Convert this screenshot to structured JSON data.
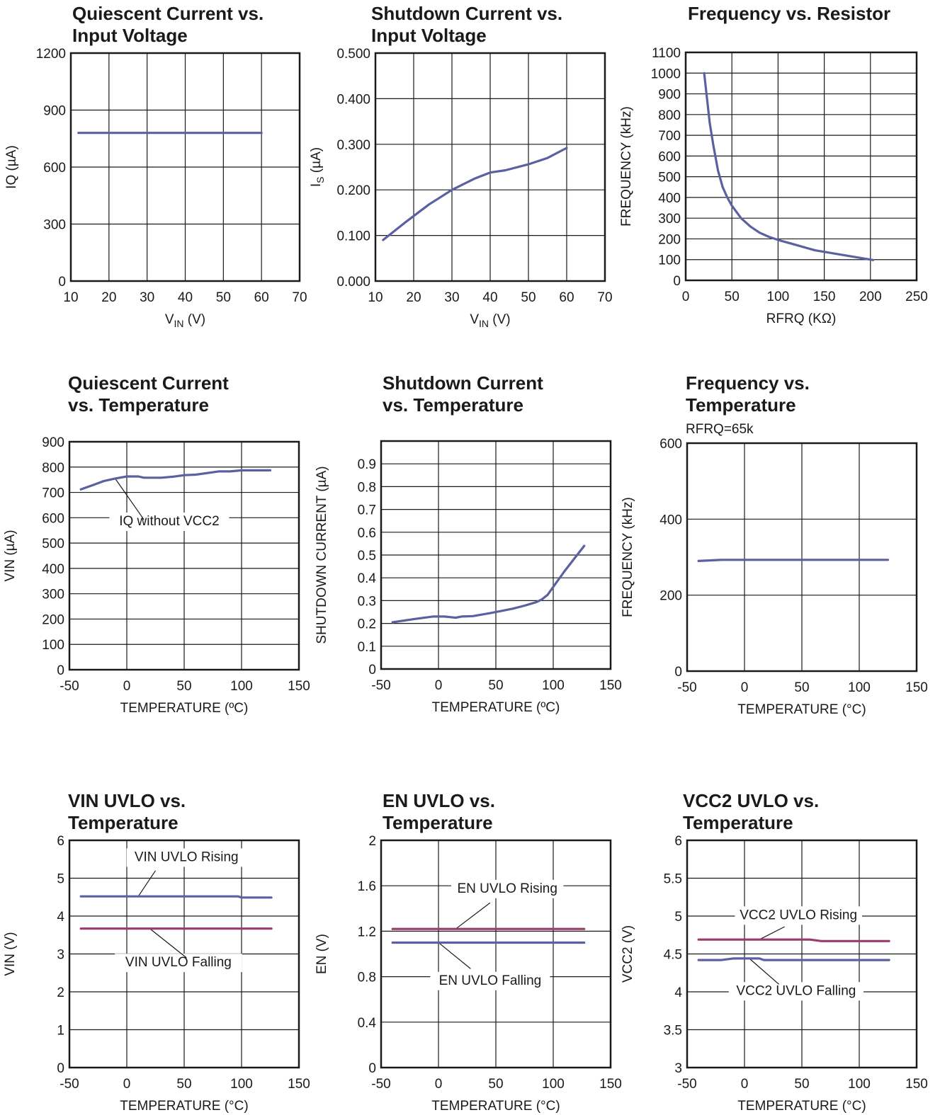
{
  "charts": [
    {
      "type": "line",
      "title": [
        "Quiescent Current vs.",
        "Input Voltage"
      ],
      "xlabel": {
        "main": "V",
        "sub": "IN",
        "rest": " (V)"
      },
      "ylabel": {
        "main": "IQ (µA)"
      },
      "xlim": [
        10,
        70
      ],
      "xticks": [
        10,
        20,
        30,
        40,
        50,
        60,
        70
      ],
      "xticklabels": [
        "10",
        "20",
        "30",
        "40",
        "50",
        "60",
        "70"
      ],
      "ylim": [
        0,
        1200
      ],
      "yticks": [
        0,
        300,
        600,
        900,
        1200
      ],
      "yticklabels": [
        "0",
        "300",
        "600",
        "900",
        "1200"
      ],
      "series": [
        {
          "color": "#5b60a0",
          "points": [
            [
              12,
              780
            ],
            [
              60,
              780
            ]
          ]
        }
      ]
    },
    {
      "type": "line",
      "title": [
        "Shutdown Current vs.",
        "Input Voltage"
      ],
      "xlabel": {
        "main": "V",
        "sub": "IN",
        "rest": " (V)"
      },
      "ylabel": {
        "main": "I",
        "sub": "S",
        "rest": " (µA)"
      },
      "xlim": [
        10,
        70
      ],
      "xticks": [
        10,
        20,
        30,
        40,
        50,
        60,
        70
      ],
      "xticklabels": [
        "10",
        "20",
        "30",
        "40",
        "50",
        "60",
        "70"
      ],
      "ylim": [
        0,
        0.5
      ],
      "yticks": [
        0,
        0.1,
        0.2,
        0.3,
        0.4,
        0.5
      ],
      "yticklabels": [
        "0.000",
        "0.100",
        "0.200",
        "0.300",
        "0.400",
        "0.500"
      ],
      "series": [
        {
          "color": "#5b60a0",
          "points": [
            [
              12,
              0.09
            ],
            [
              18,
              0.13
            ],
            [
              24,
              0.168
            ],
            [
              30,
              0.2
            ],
            [
              36,
              0.225
            ],
            [
              40,
              0.238
            ],
            [
              44,
              0.243
            ],
            [
              50,
              0.256
            ],
            [
              55,
              0.27
            ],
            [
              60,
              0.292
            ]
          ]
        }
      ]
    },
    {
      "type": "line",
      "title": [
        "Frequency vs. Resistor"
      ],
      "xlabel": {
        "main": "RFRQ (KΩ)"
      },
      "ylabel": {
        "main": "FREQUENCY (kHz)"
      },
      "xlim": [
        0,
        250
      ],
      "xticks": [
        0,
        50,
        100,
        150,
        200,
        250
      ],
      "xticklabels": [
        "0",
        "50",
        "100",
        "150",
        "200",
        "250"
      ],
      "ylim": [
        0,
        1100
      ],
      "yticks": [
        0,
        100,
        200,
        300,
        400,
        500,
        600,
        700,
        800,
        900,
        1000,
        1100
      ],
      "yticklabels": [
        "0",
        "100",
        "200",
        "300",
        "400",
        "500",
        "600",
        "700",
        "800",
        "900",
        "1000",
        "1100"
      ],
      "series": [
        {
          "color": "#5b60a0",
          "points": [
            [
              20,
              1000
            ],
            [
              23,
              880
            ],
            [
              26,
              760
            ],
            [
              30,
              650
            ],
            [
              35,
              530
            ],
            [
              40,
              450
            ],
            [
              45,
              400
            ],
            [
              50,
              360
            ],
            [
              60,
              300
            ],
            [
              70,
              260
            ],
            [
              80,
              230
            ],
            [
              90,
              210
            ],
            [
              100,
              195
            ],
            [
              120,
              170
            ],
            [
              140,
              145
            ],
            [
              160,
              130
            ],
            [
              180,
              115
            ],
            [
              200,
              100
            ],
            [
              203,
              98
            ]
          ]
        }
      ]
    },
    {
      "type": "line",
      "title": [
        "Quiescent Current",
        "vs. Temperature"
      ],
      "xlabel": {
        "main": "TEMPERATURE (ºC)"
      },
      "ylabel": {
        "main": "VIN (µA)"
      },
      "xlim": [
        -50,
        150
      ],
      "xticks": [
        -50,
        0,
        50,
        100,
        150
      ],
      "xticklabels": [
        "-50",
        "0",
        "50",
        "100",
        "150"
      ],
      "ylim": [
        0,
        900
      ],
      "yticks": [
        0,
        100,
        200,
        300,
        400,
        500,
        600,
        700,
        800,
        900
      ],
      "yticklabels": [
        "0",
        "100",
        "200",
        "300",
        "400",
        "500",
        "600",
        "700",
        "800",
        "900"
      ],
      "series": [
        {
          "color": "#5b60a0",
          "points": [
            [
              -40,
              712
            ],
            [
              -30,
              728
            ],
            [
              -20,
              745
            ],
            [
              -10,
              755
            ],
            [
              0,
              763
            ],
            [
              10,
              763
            ],
            [
              15,
              758
            ],
            [
              30,
              758
            ],
            [
              40,
              762
            ],
            [
              50,
              768
            ],
            [
              60,
              770
            ],
            [
              80,
              783
            ],
            [
              90,
              783
            ],
            [
              100,
              787
            ],
            [
              125,
              787
            ]
          ]
        }
      ],
      "annotations": [
        {
          "text": "IQ without VCC2",
          "x": 37,
          "y": 570,
          "bg": true,
          "leader": [
            [
              15,
              592
            ],
            [
              -10,
              754
            ]
          ]
        }
      ]
    },
    {
      "type": "line",
      "title": [
        "Shutdown Current",
        "vs. Temperature"
      ],
      "xlabel": {
        "main": "TEMPERATURE (ºC)"
      },
      "ylabel": {
        "main": "SHUTDOWN CURRENT (µA)"
      },
      "xlim": [
        -50,
        150
      ],
      "xticks": [
        -50,
        0,
        50,
        100,
        150
      ],
      "xticklabels": [
        "-50",
        "0",
        "50",
        "100",
        "150"
      ],
      "ylim": [
        0,
        1.0
      ],
      "yticks": [
        0,
        0.1,
        0.2,
        0.3,
        0.4,
        0.5,
        0.6,
        0.7,
        0.8,
        0.9
      ],
      "yticklabels": [
        "0",
        "0.1",
        "0.2",
        "0.3",
        "0.4",
        "0.5",
        "0.6",
        "0.7",
        "0.8",
        "0.9"
      ],
      "series": [
        {
          "color": "#5b60a0",
          "points": [
            [
              -40,
              0.205
            ],
            [
              -20,
              0.22
            ],
            [
              -5,
              0.23
            ],
            [
              5,
              0.23
            ],
            [
              15,
              0.225
            ],
            [
              20,
              0.23
            ],
            [
              30,
              0.232
            ],
            [
              45,
              0.245
            ],
            [
              55,
              0.255
            ],
            [
              65,
              0.265
            ],
            [
              75,
              0.278
            ],
            [
              85,
              0.293
            ],
            [
              90,
              0.305
            ],
            [
              95,
              0.325
            ],
            [
              100,
              0.36
            ],
            [
              110,
              0.43
            ],
            [
              127,
              0.54
            ]
          ]
        }
      ]
    },
    {
      "type": "line",
      "title": [
        "Frequency vs.",
        "Temperature"
      ],
      "subtitle": "RFRQ=65k",
      "xlabel": {
        "main": "TEMPERATURE (°C)"
      },
      "ylabel": {
        "main": "FREQUENCY (kHz)"
      },
      "xlim": [
        -50,
        150
      ],
      "xticks": [
        -50,
        0,
        50,
        100,
        150
      ],
      "xticklabels": [
        "-50",
        "0",
        "50",
        "100",
        "150"
      ],
      "ylim": [
        0,
        600
      ],
      "yticks": [
        0,
        200,
        400,
        600
      ],
      "yticklabels": [
        "0",
        "200",
        "400",
        "600"
      ],
      "series": [
        {
          "color": "#5b60a0",
          "points": [
            [
              -40,
              290
            ],
            [
              -20,
              293
            ],
            [
              0,
              293
            ],
            [
              125,
              293
            ]
          ]
        }
      ]
    },
    {
      "type": "line",
      "title": [
        "VIN UVLO vs.",
        "Temperature"
      ],
      "xlabel": {
        "main": "TEMPERATURE (°C)"
      },
      "ylabel": {
        "main": "VIN (V)"
      },
      "xlim": [
        -50,
        150
      ],
      "xticks": [
        -50,
        0,
        50,
        100,
        150
      ],
      "xticklabels": [
        "-50",
        "0",
        "50",
        "100",
        "150"
      ],
      "ylim": [
        0,
        6
      ],
      "yticks": [
        0,
        1,
        2,
        3,
        4,
        5,
        6
      ],
      "yticklabels": [
        "0",
        "1",
        "2",
        "3",
        "4",
        "5",
        "6"
      ],
      "series": [
        {
          "color": "#5b60a0",
          "points": [
            [
              -40,
              4.52
            ],
            [
              97,
              4.52
            ],
            [
              100,
              4.49
            ],
            [
              126,
              4.49
            ]
          ]
        },
        {
          "color": "#9b3a6c",
          "points": [
            [
              -40,
              3.67
            ],
            [
              126,
              3.67
            ]
          ]
        }
      ],
      "annotations": [
        {
          "text": "VIN UVLO Rising",
          "x": 52,
          "y": 5.45,
          "bg": true,
          "leader": [
            [
              25,
              5.2
            ],
            [
              10,
              4.52
            ]
          ]
        },
        {
          "text": "VIN UVLO Falling",
          "x": 45,
          "y": 2.67,
          "bg": true,
          "leader": [
            [
              52,
              2.9
            ],
            [
              20,
              3.67
            ]
          ]
        }
      ]
    },
    {
      "type": "line",
      "title": [
        "EN UVLO vs.",
        "Temperature"
      ],
      "xlabel": {
        "main": "TEMPERATURE (°C)"
      },
      "ylabel": {
        "main": "EN (V)"
      },
      "xlim": [
        -50,
        150
      ],
      "xticks": [
        -50,
        0,
        50,
        100,
        150
      ],
      "xticklabels": [
        "-50",
        "0",
        "50",
        "100",
        "150"
      ],
      "ylim": [
        0,
        2
      ],
      "yticks": [
        0,
        0.4,
        0.8,
        1.2,
        1.6,
        2
      ],
      "yticklabels": [
        "0",
        "0.4",
        "0.8",
        "1.2",
        "1.6",
        "2"
      ],
      "series": [
        {
          "color": "#9b3a6c",
          "points": [
            [
              -40,
              1.22
            ],
            [
              127,
              1.22
            ]
          ]
        },
        {
          "color": "#5b60a0",
          "points": [
            [
              -40,
              1.1
            ],
            [
              127,
              1.1
            ]
          ]
        }
      ],
      "annotations": [
        {
          "text": "EN UVLO Rising",
          "x": 60,
          "y": 1.54,
          "bg": true,
          "leader": [
            [
              45,
              1.45
            ],
            [
              15,
              1.22
            ]
          ]
        },
        {
          "text": "EN UVLO Falling",
          "x": 45,
          "y": 0.73,
          "bg": true,
          "leader": [
            [
              28,
              0.87
            ],
            [
              0,
              1.1
            ]
          ]
        }
      ]
    },
    {
      "type": "line",
      "title": [
        "VCC2 UVLO vs.",
        "Temperature"
      ],
      "xlabel": {
        "main": "TEMPERATURE (°C)"
      },
      "ylabel": {
        "main": "VCC2 (V)"
      },
      "xlim": [
        -50,
        150
      ],
      "xticks": [
        -50,
        0,
        50,
        100,
        150
      ],
      "xticklabels": [
        "-50",
        "0",
        "50",
        "100",
        "150"
      ],
      "ylim": [
        3,
        6
      ],
      "yticks": [
        3,
        3.5,
        4,
        4.5,
        5,
        5.5,
        6
      ],
      "yticklabels": [
        "3",
        "3.5",
        "4",
        "4.5",
        "5",
        "5.5",
        "6"
      ],
      "series": [
        {
          "color": "#9b3a6c",
          "points": [
            [
              -40,
              4.69
            ],
            [
              57,
              4.69
            ],
            [
              67,
              4.67
            ],
            [
              126,
              4.67
            ]
          ]
        },
        {
          "color": "#5b60a0",
          "points": [
            [
              -40,
              4.42
            ],
            [
              -20,
              4.42
            ],
            [
              -10,
              4.44
            ],
            [
              13,
              4.44
            ],
            [
              17,
              4.42
            ],
            [
              126,
              4.42
            ]
          ]
        }
      ],
      "annotations": [
        {
          "text": "VCC2 UVLO Rising",
          "x": 47,
          "y": 4.96,
          "bg": true,
          "leader": [
            [
              35,
              4.86
            ],
            [
              13,
              4.69
            ]
          ]
        },
        {
          "text": "VCC2 UVLO Falling",
          "x": 45,
          "y": 3.96,
          "bg": true,
          "leader": [
            [
              30,
              4.1
            ],
            [
              5,
              4.43
            ]
          ]
        }
      ]
    }
  ]
}
